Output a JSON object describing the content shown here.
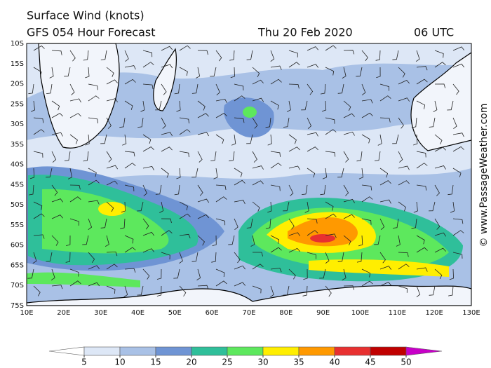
{
  "header": {
    "title": "Surface Wind (knots)",
    "model": "GFS 054 Hour Forecast",
    "date": "Thu 20 Feb 2020",
    "time": "06 UTC"
  },
  "map": {
    "lat_labels": [
      "10S",
      "15S",
      "20S",
      "25S",
      "30S",
      "35S",
      "40S",
      "45S",
      "50S",
      "55S",
      "60S",
      "65S",
      "70S",
      "75S"
    ],
    "lon_labels": [
      "10E",
      "20E",
      "30E",
      "40E",
      "50E",
      "60E",
      "70E",
      "80E",
      "90E",
      "100E",
      "110E",
      "120E",
      "130E"
    ]
  },
  "colorbar": {
    "ticks": [
      5,
      10,
      15,
      20,
      25,
      30,
      35,
      40,
      45,
      50
    ],
    "colors": [
      "#dde7f6",
      "#a9c1e6",
      "#6f94d4",
      "#2fbf9a",
      "#5de85d",
      "#ffee00",
      "#ff9900",
      "#e83030",
      "#c00000"
    ],
    "under_color": "#ffffff",
    "over_color": "#c800c8"
  },
  "watermark": "© www.PassageWeather.com"
}
